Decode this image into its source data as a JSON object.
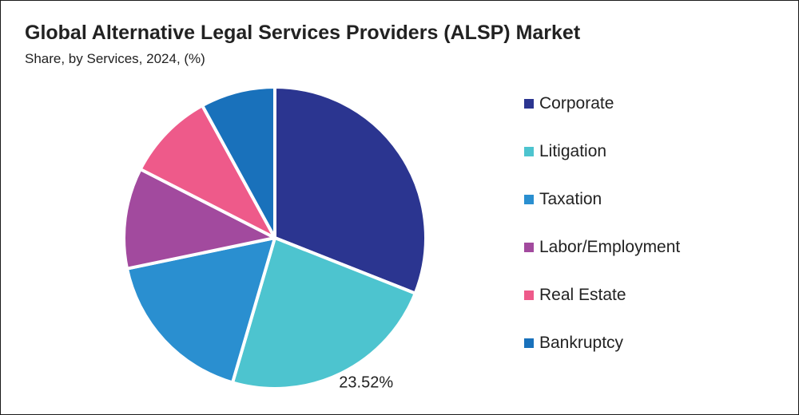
{
  "header": {
    "title": "Global Alternative Legal Services Providers (ALSP) Market",
    "subtitle": "Share, by Services, 2024, (%)"
  },
  "chart_data": {
    "type": "pie",
    "title": "Global Alternative Legal Services Providers (ALSP) Market",
    "subtitle": "Share, by Services, 2024, (%)",
    "legend_position": "right",
    "start_angle_deg": 0,
    "direction": "clockwise",
    "categories": [
      "Corporate",
      "Litigation",
      "Taxation",
      "Labor/Employment",
      "Real Estate",
      "Bankruptcy"
    ],
    "values": [
      31.0,
      23.52,
      17.2,
      10.8,
      9.5,
      7.98
    ],
    "colors": [
      "#2B3590",
      "#4DC4CF",
      "#2A8FD0",
      "#A24A9E",
      "#EE5A8A",
      "#1971BB"
    ],
    "data_labels": [
      {
        "category": "Litigation",
        "text": "23.52%"
      }
    ]
  }
}
